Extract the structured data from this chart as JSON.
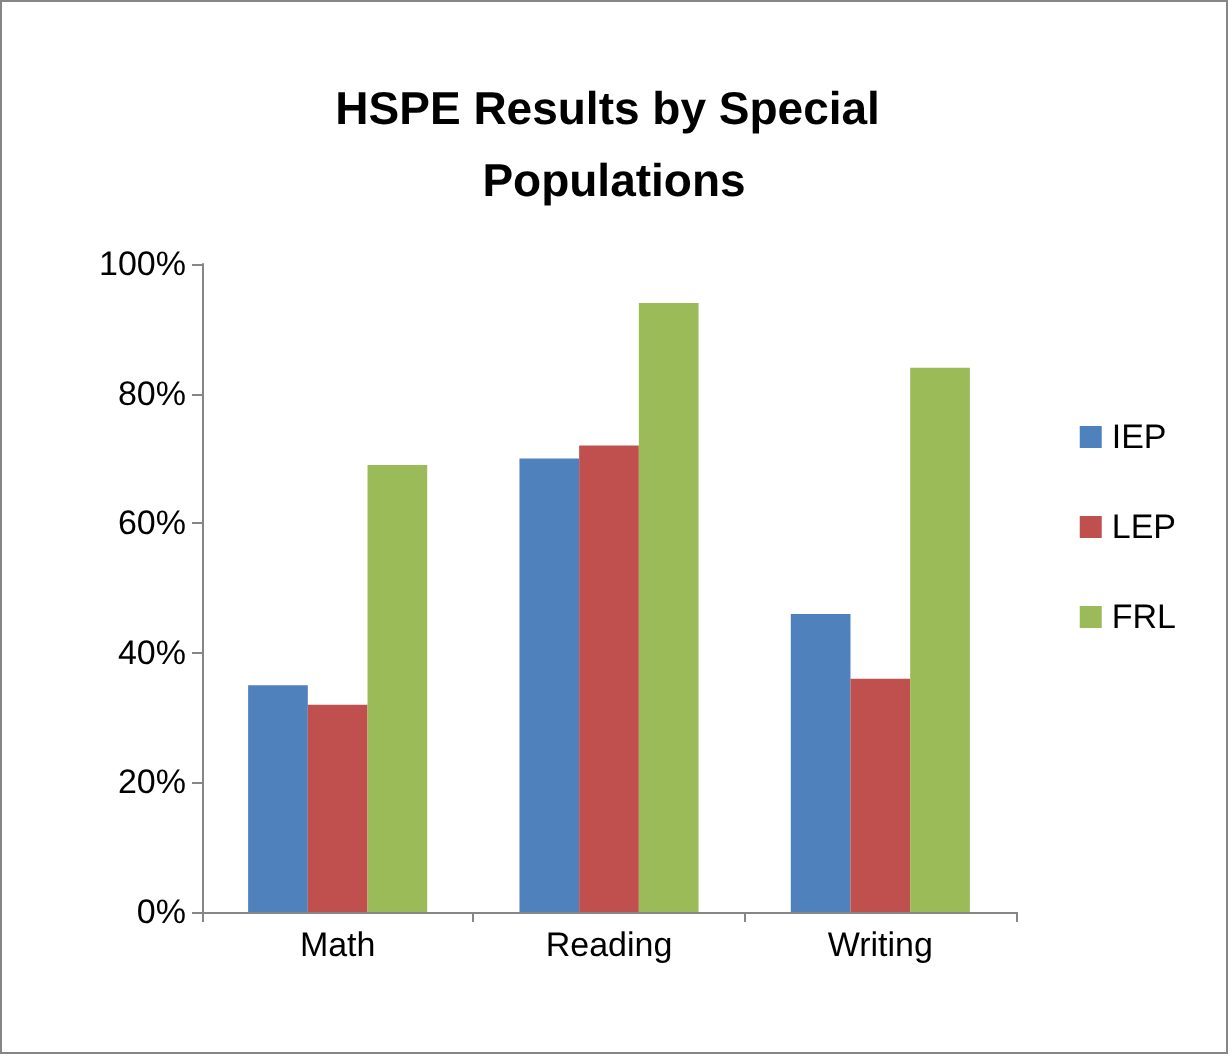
{
  "chart_data": {
    "type": "bar",
    "title": "HSPE Results by Special Populations",
    "categories": [
      "Math",
      "Reading",
      "Writing"
    ],
    "series": [
      {
        "name": "IEP",
        "color": "#4f81bd",
        "values": [
          35,
          70,
          46
        ]
      },
      {
        "name": "LEP",
        "color": "#c0504d",
        "values": [
          32,
          72,
          36
        ]
      },
      {
        "name": "FRL",
        "color": "#9bbb59",
        "values": [
          69,
          94,
          84
        ]
      }
    ],
    "ylim": [
      0,
      100
    ],
    "yticks": [
      {
        "value": 0,
        "label": "0%"
      },
      {
        "value": 20,
        "label": "20%"
      },
      {
        "value": 40,
        "label": "40%"
      },
      {
        "value": 60,
        "label": "60%"
      },
      {
        "value": 80,
        "label": "80%"
      },
      {
        "value": 100,
        "label": "100%"
      }
    ],
    "grid": false,
    "legend": "right"
  }
}
